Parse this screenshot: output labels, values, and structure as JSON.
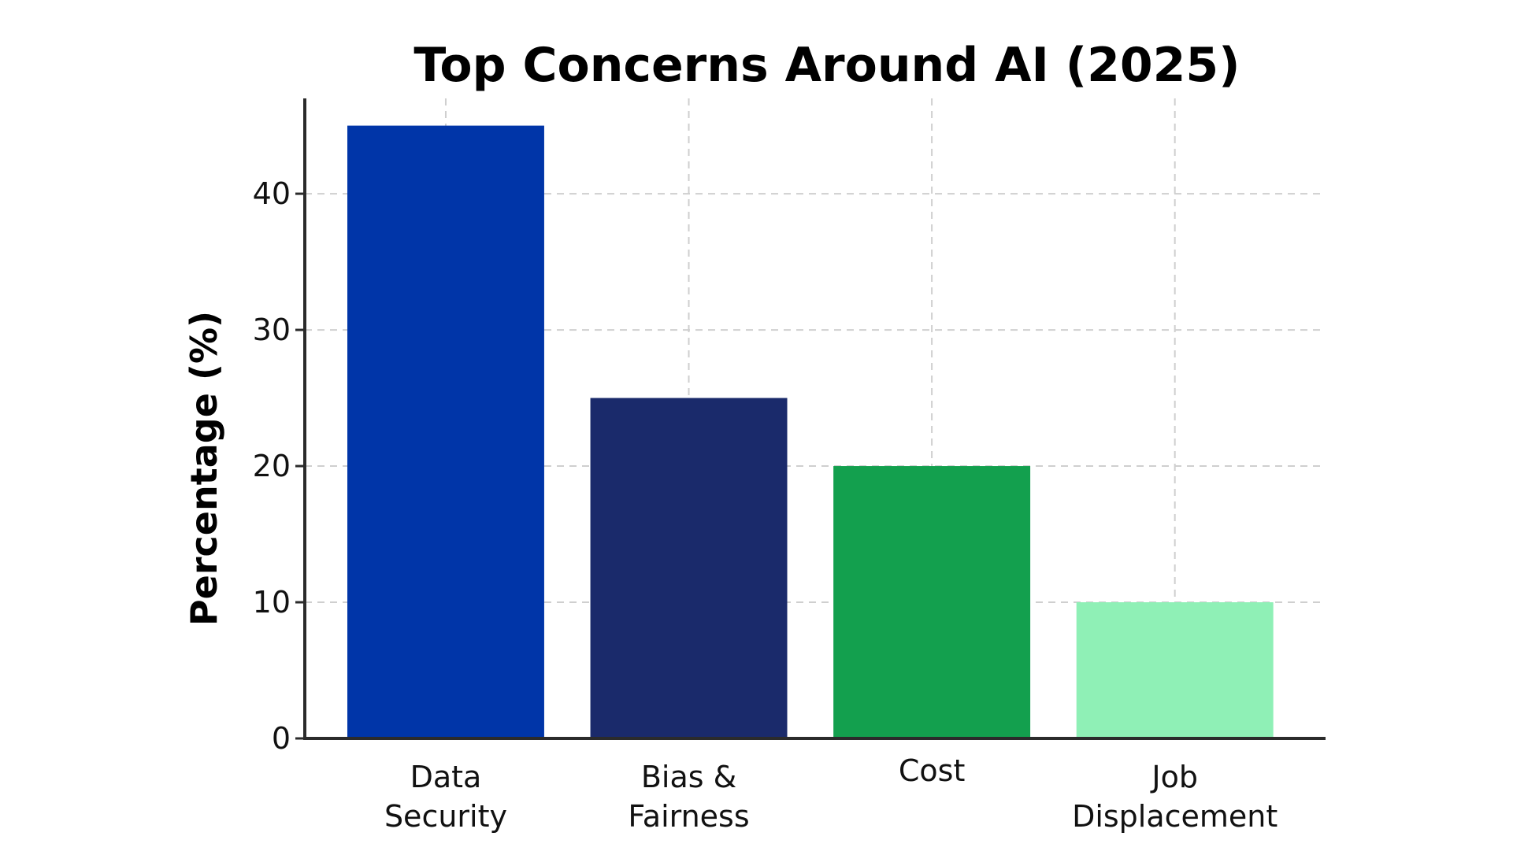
{
  "chart_data": {
    "type": "bar",
    "title": "Top Concerns Around AI (2025)",
    "xlabel": "",
    "ylabel": "Percentage (%)",
    "categories": [
      [
        "Data",
        "Security"
      ],
      [
        "Bias &",
        "Fairness"
      ],
      [
        "Cost"
      ],
      [
        "Job",
        "Displacement"
      ]
    ],
    "values": [
      45,
      25,
      20,
      10
    ],
    "colors": [
      "#0035a8",
      "#1a2a6b",
      "#13a04e",
      "#8ff0b6"
    ],
    "yticks": [
      0,
      10,
      20,
      30,
      40
    ],
    "ylim": [
      0,
      47
    ],
    "grid": true,
    "legend": false
  }
}
